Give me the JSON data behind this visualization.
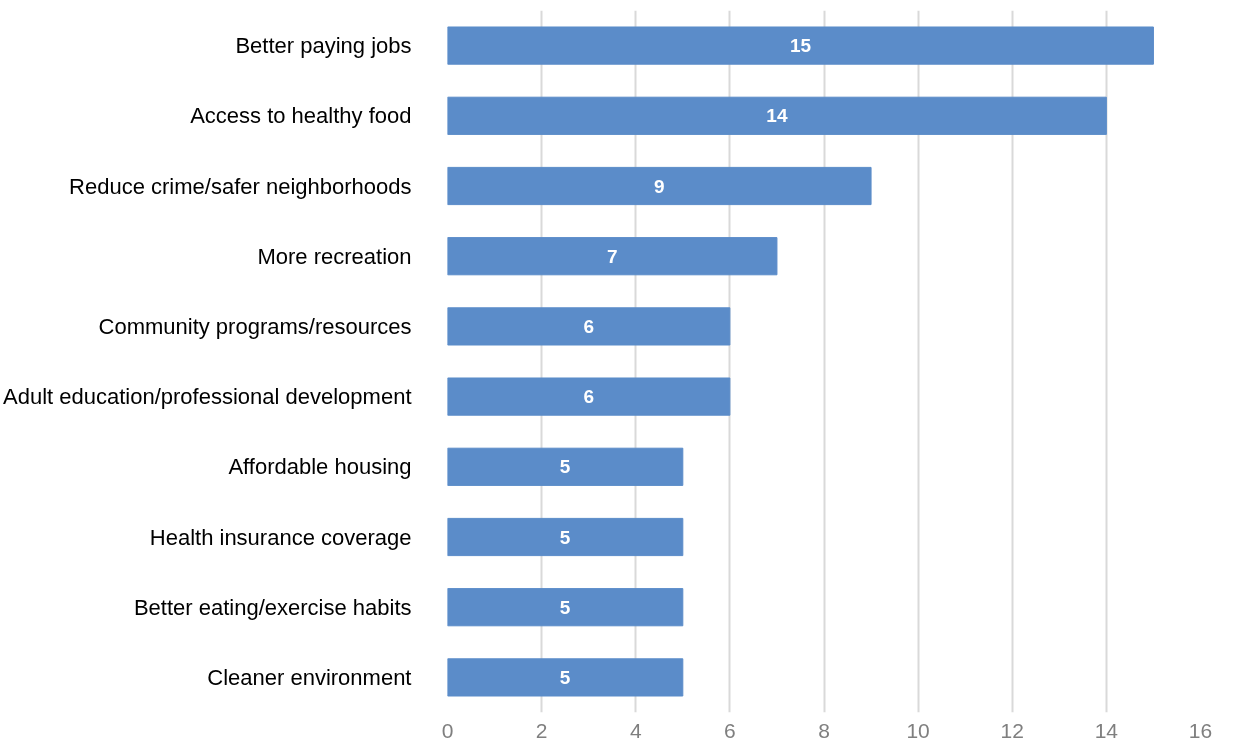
{
  "chart_data": {
    "type": "bar",
    "orientation": "horizontal",
    "categories": [
      "Better paying jobs",
      "Access to healthy food",
      "Reduce crime/safer neighborhoods",
      "More recreation",
      "Community programs/resources",
      "Adult education/professional development",
      "Affordable housing",
      "Health insurance coverage",
      "Better eating/exercise habits",
      "Cleaner environment"
    ],
    "values": [
      15,
      14,
      9,
      7,
      6,
      6,
      5,
      5,
      5,
      5
    ],
    "color": "#5b8cc9",
    "xlim": [
      0,
      16
    ],
    "xticks": [
      0,
      2,
      4,
      6,
      8,
      10,
      12,
      14,
      16
    ],
    "grid": "x",
    "data_labels": true
  }
}
